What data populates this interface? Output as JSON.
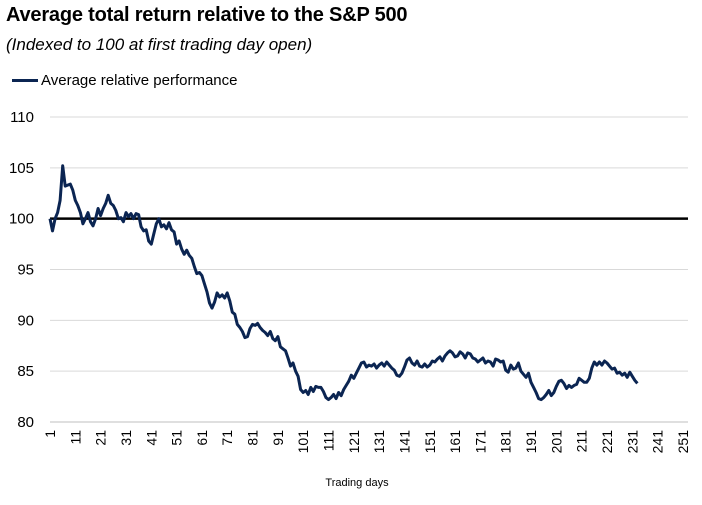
{
  "chart_data": {
    "type": "line",
    "title": "Average total return relative to the S&P 500",
    "subtitle": "(Indexed to 100 at first trading day open)",
    "xlabel": "Trading days",
    "ylabel": "",
    "ylim": [
      80,
      110
    ],
    "xlim": [
      1,
      253
    ],
    "yticks": [
      80,
      85,
      90,
      95,
      100,
      105,
      110
    ],
    "xticks": [
      1,
      11,
      21,
      31,
      41,
      51,
      61,
      71,
      81,
      91,
      101,
      111,
      121,
      131,
      141,
      151,
      161,
      171,
      181,
      191,
      201,
      211,
      221,
      231,
      241,
      251
    ],
    "grid": true,
    "legend": "top-left",
    "reference_line": 100,
    "series": [
      {
        "name": "Average relative performance",
        "color": "#0b2552",
        "points": [
          [
            1,
            100.0
          ],
          [
            2,
            98.8
          ],
          [
            3,
            100.0
          ],
          [
            4,
            100.6
          ],
          [
            5,
            101.8
          ],
          [
            6,
            105.2
          ],
          [
            7,
            103.2
          ],
          [
            8,
            103.3
          ],
          [
            9,
            103.4
          ],
          [
            10,
            102.8
          ],
          [
            11,
            101.8
          ],
          [
            12,
            101.3
          ],
          [
            13,
            100.6
          ],
          [
            14,
            99.5
          ],
          [
            15,
            100.0
          ],
          [
            16,
            100.6
          ],
          [
            17,
            99.7
          ],
          [
            18,
            99.3
          ],
          [
            19,
            100.0
          ],
          [
            20,
            101.0
          ],
          [
            21,
            100.3
          ],
          [
            22,
            101.0
          ],
          [
            23,
            101.5
          ],
          [
            24,
            102.3
          ],
          [
            25,
            101.5
          ],
          [
            26,
            101.3
          ],
          [
            27,
            100.8
          ],
          [
            28,
            100.0
          ],
          [
            29,
            100.1
          ],
          [
            30,
            99.7
          ],
          [
            31,
            100.6
          ],
          [
            32,
            100.2
          ],
          [
            33,
            100.5
          ],
          [
            34,
            100.0
          ],
          [
            35,
            100.5
          ],
          [
            36,
            100.4
          ],
          [
            37,
            99.2
          ],
          [
            38,
            98.8
          ],
          [
            39,
            98.9
          ],
          [
            40,
            97.8
          ],
          [
            41,
            97.5
          ],
          [
            42,
            98.5
          ],
          [
            43,
            99.5
          ],
          [
            44,
            100.0
          ],
          [
            45,
            99.2
          ],
          [
            46,
            99.4
          ],
          [
            47,
            99.0
          ],
          [
            48,
            99.6
          ],
          [
            49,
            98.9
          ],
          [
            50,
            98.7
          ],
          [
            51,
            97.5
          ],
          [
            52,
            97.8
          ],
          [
            53,
            97.0
          ],
          [
            54,
            96.5
          ],
          [
            55,
            96.9
          ],
          [
            56,
            96.4
          ],
          [
            57,
            96.1
          ],
          [
            58,
            95.3
          ],
          [
            59,
            94.6
          ],
          [
            60,
            94.7
          ],
          [
            61,
            94.4
          ],
          [
            62,
            93.6
          ],
          [
            63,
            92.8
          ],
          [
            64,
            91.7
          ],
          [
            65,
            91.2
          ],
          [
            66,
            91.8
          ],
          [
            67,
            92.7
          ],
          [
            68,
            92.3
          ],
          [
            69,
            92.5
          ],
          [
            70,
            92.2
          ],
          [
            71,
            92.7
          ],
          [
            72,
            91.9
          ],
          [
            73,
            90.8
          ],
          [
            74,
            90.6
          ],
          [
            75,
            89.6
          ],
          [
            76,
            89.3
          ],
          [
            77,
            88.9
          ],
          [
            78,
            88.3
          ],
          [
            79,
            88.4
          ],
          [
            80,
            89.2
          ],
          [
            81,
            89.6
          ],
          [
            82,
            89.5
          ],
          [
            83,
            89.7
          ],
          [
            84,
            89.3
          ],
          [
            85,
            89.0
          ],
          [
            86,
            88.8
          ],
          [
            87,
            88.5
          ],
          [
            88,
            88.9
          ],
          [
            89,
            88.2
          ],
          [
            90,
            88.0
          ],
          [
            91,
            88.4
          ],
          [
            92,
            87.4
          ],
          [
            93,
            87.2
          ],
          [
            94,
            87.0
          ],
          [
            95,
            86.3
          ],
          [
            96,
            85.5
          ],
          [
            97,
            85.8
          ],
          [
            98,
            85.0
          ],
          [
            99,
            84.5
          ],
          [
            100,
            83.2
          ],
          [
            101,
            82.9
          ],
          [
            102,
            83.1
          ],
          [
            103,
            82.7
          ],
          [
            104,
            83.4
          ],
          [
            105,
            83.0
          ],
          [
            106,
            83.5
          ],
          [
            107,
            83.4
          ],
          [
            108,
            83.4
          ],
          [
            109,
            83.0
          ],
          [
            110,
            82.4
          ],
          [
            111,
            82.2
          ],
          [
            112,
            82.4
          ],
          [
            113,
            82.7
          ],
          [
            114,
            82.3
          ],
          [
            115,
            82.9
          ],
          [
            116,
            82.6
          ],
          [
            117,
            83.2
          ],
          [
            118,
            83.6
          ],
          [
            119,
            84.0
          ],
          [
            120,
            84.6
          ],
          [
            121,
            84.3
          ],
          [
            122,
            84.8
          ],
          [
            123,
            85.3
          ],
          [
            124,
            85.8
          ],
          [
            125,
            85.9
          ],
          [
            126,
            85.4
          ],
          [
            127,
            85.6
          ],
          [
            128,
            85.5
          ],
          [
            129,
            85.7
          ],
          [
            130,
            85.3
          ],
          [
            131,
            85.6
          ],
          [
            132,
            85.8
          ],
          [
            133,
            85.5
          ],
          [
            134,
            85.9
          ],
          [
            135,
            85.6
          ],
          [
            136,
            85.3
          ],
          [
            137,
            85.1
          ],
          [
            138,
            84.6
          ],
          [
            139,
            84.5
          ],
          [
            140,
            84.8
          ],
          [
            141,
            85.4
          ],
          [
            142,
            86.1
          ],
          [
            143,
            86.3
          ],
          [
            144,
            85.8
          ],
          [
            145,
            85.6
          ],
          [
            146,
            86.0
          ],
          [
            147,
            85.5
          ],
          [
            148,
            85.4
          ],
          [
            149,
            85.7
          ],
          [
            150,
            85.4
          ],
          [
            151,
            85.6
          ],
          [
            152,
            86.0
          ],
          [
            153,
            85.9
          ],
          [
            154,
            86.2
          ],
          [
            155,
            86.4
          ],
          [
            156,
            86.0
          ],
          [
            157,
            86.5
          ],
          [
            158,
            86.8
          ],
          [
            159,
            87.0
          ],
          [
            160,
            86.8
          ],
          [
            161,
            86.4
          ],
          [
            162,
            86.5
          ],
          [
            163,
            86.9
          ],
          [
            164,
            86.7
          ],
          [
            165,
            86.3
          ],
          [
            166,
            86.8
          ],
          [
            167,
            86.7
          ],
          [
            168,
            86.3
          ],
          [
            169,
            86.2
          ],
          [
            170,
            85.9
          ],
          [
            171,
            86.1
          ],
          [
            172,
            86.3
          ],
          [
            173,
            85.8
          ],
          [
            174,
            86.0
          ],
          [
            175,
            85.9
          ],
          [
            176,
            85.5
          ],
          [
            177,
            86.2
          ],
          [
            178,
            86.1
          ],
          [
            179,
            85.9
          ],
          [
            180,
            86.0
          ],
          [
            181,
            85.1
          ],
          [
            182,
            84.9
          ],
          [
            183,
            85.6
          ],
          [
            184,
            85.2
          ],
          [
            185,
            85.3
          ],
          [
            186,
            85.8
          ],
          [
            187,
            85.0
          ],
          [
            188,
            84.7
          ],
          [
            189,
            84.4
          ],
          [
            190,
            84.8
          ],
          [
            191,
            83.9
          ],
          [
            192,
            83.4
          ],
          [
            193,
            82.9
          ],
          [
            194,
            82.3
          ],
          [
            195,
            82.2
          ],
          [
            196,
            82.4
          ],
          [
            197,
            82.7
          ],
          [
            198,
            83.1
          ],
          [
            199,
            82.6
          ],
          [
            200,
            82.9
          ],
          [
            201,
            83.5
          ],
          [
            202,
            84.0
          ],
          [
            203,
            84.1
          ],
          [
            204,
            83.8
          ],
          [
            205,
            83.3
          ],
          [
            206,
            83.6
          ],
          [
            207,
            83.4
          ],
          [
            208,
            83.6
          ],
          [
            209,
            83.7
          ],
          [
            210,
            84.3
          ],
          [
            211,
            84.1
          ],
          [
            212,
            83.9
          ],
          [
            213,
            83.9
          ],
          [
            214,
            84.3
          ],
          [
            215,
            85.3
          ],
          [
            216,
            85.9
          ],
          [
            217,
            85.6
          ],
          [
            218,
            85.9
          ],
          [
            219,
            85.6
          ],
          [
            220,
            86.0
          ],
          [
            221,
            85.8
          ],
          [
            222,
            85.5
          ],
          [
            223,
            85.2
          ],
          [
            224,
            85.3
          ],
          [
            225,
            84.8
          ],
          [
            226,
            84.9
          ],
          [
            227,
            84.6
          ],
          [
            228,
            84.8
          ],
          [
            229,
            84.4
          ],
          [
            230,
            84.9
          ],
          [
            231,
            84.5
          ],
          [
            232,
            84.1
          ],
          [
            233,
            83.8
          ]
        ]
      }
    ]
  }
}
